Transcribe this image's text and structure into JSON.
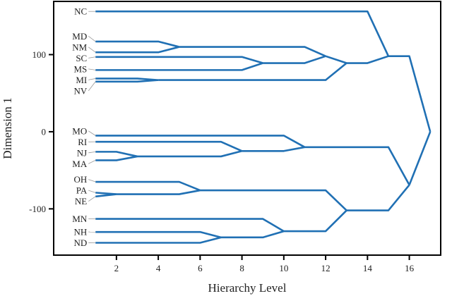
{
  "chart_data": {
    "type": "line",
    "subtype": "dendrogram",
    "title": "",
    "xlabel": "Hierarchy Level",
    "ylabel": "Dimension 1",
    "xlim": [
      -1,
      17.5
    ],
    "ylim": [
      -160,
      169
    ],
    "xticks": [
      2,
      4,
      6,
      8,
      10,
      12,
      14,
      16
    ],
    "yticks": [
      -100,
      0,
      100
    ],
    "ytick_labels": [
      "-100",
      "0",
      "100"
    ],
    "grid": false,
    "line_color": "#2070b4",
    "tree": {
      "level": 17,
      "y": 0,
      "children": [
        {
          "level": 15,
          "y": 98,
          "children": [
            {
              "name": "NC",
              "level": 1,
              "y": 156
            },
            {
              "level": 13,
              "y": 89,
              "children": [
                {
                  "level": 12,
                  "y": 98,
                  "children": [
                    {
                      "level": 5,
                      "y": 110,
                      "children": [
                        {
                          "name": "MD",
                          "level": 1,
                          "y": 117
                        },
                        {
                          "name": "NM",
                          "level": 1,
                          "y": 103
                        }
                      ]
                    },
                    {
                      "level": 9,
                      "y": 89,
                      "children": [
                        {
                          "name": "SC",
                          "level": 1,
                          "y": 97
                        },
                        {
                          "name": "MS",
                          "level": 1,
                          "y": 80
                        }
                      ]
                    }
                  ]
                },
                {
                  "level": 4,
                  "y": 67,
                  "children": [
                    {
                      "name": "MI",
                      "level": 1,
                      "y": 69
                    },
                    {
                      "name": "NV",
                      "level": 1,
                      "y": 65
                    }
                  ]
                }
              ]
            }
          ]
        },
        {
          "level": 16,
          "y": -69,
          "children": [
            {
              "level": 11,
              "y": -20,
              "children": [
                {
                  "name": "MO",
                  "level": 1,
                  "y": -5
                },
                {
                  "level": 8,
                  "y": -25,
                  "children": [
                    {
                      "name": "RI",
                      "level": 1,
                      "y": -13
                    },
                    {
                      "level": 3,
                      "y": -32,
                      "children": [
                        {
                          "name": "NJ",
                          "level": 1,
                          "y": -26
                        },
                        {
                          "name": "MA",
                          "level": 1,
                          "y": -37
                        }
                      ]
                    }
                  ]
                }
              ]
            },
            {
              "level": 13,
              "y": -102,
              "children": [
                {
                  "level": 6,
                  "y": -76,
                  "children": [
                    {
                      "name": "OH",
                      "level": 1,
                      "y": -65
                    },
                    {
                      "level": 2,
                      "y": -81,
                      "children": [
                        {
                          "name": "PA",
                          "level": 1,
                          "y": -79
                        },
                        {
                          "name": "NE",
                          "level": 1,
                          "y": -84
                        }
                      ]
                    }
                  ]
                },
                {
                  "level": 10,
                  "y": -129,
                  "children": [
                    {
                      "name": "MN",
                      "level": 1,
                      "y": -113
                    },
                    {
                      "level": 7,
                      "y": -137,
                      "children": [
                        {
                          "name": "NH",
                          "level": 1,
                          "y": -130
                        },
                        {
                          "name": "ND",
                          "level": 1,
                          "y": -144
                        }
                      ]
                    }
                  ]
                }
              ]
            }
          ]
        }
      ]
    }
  }
}
